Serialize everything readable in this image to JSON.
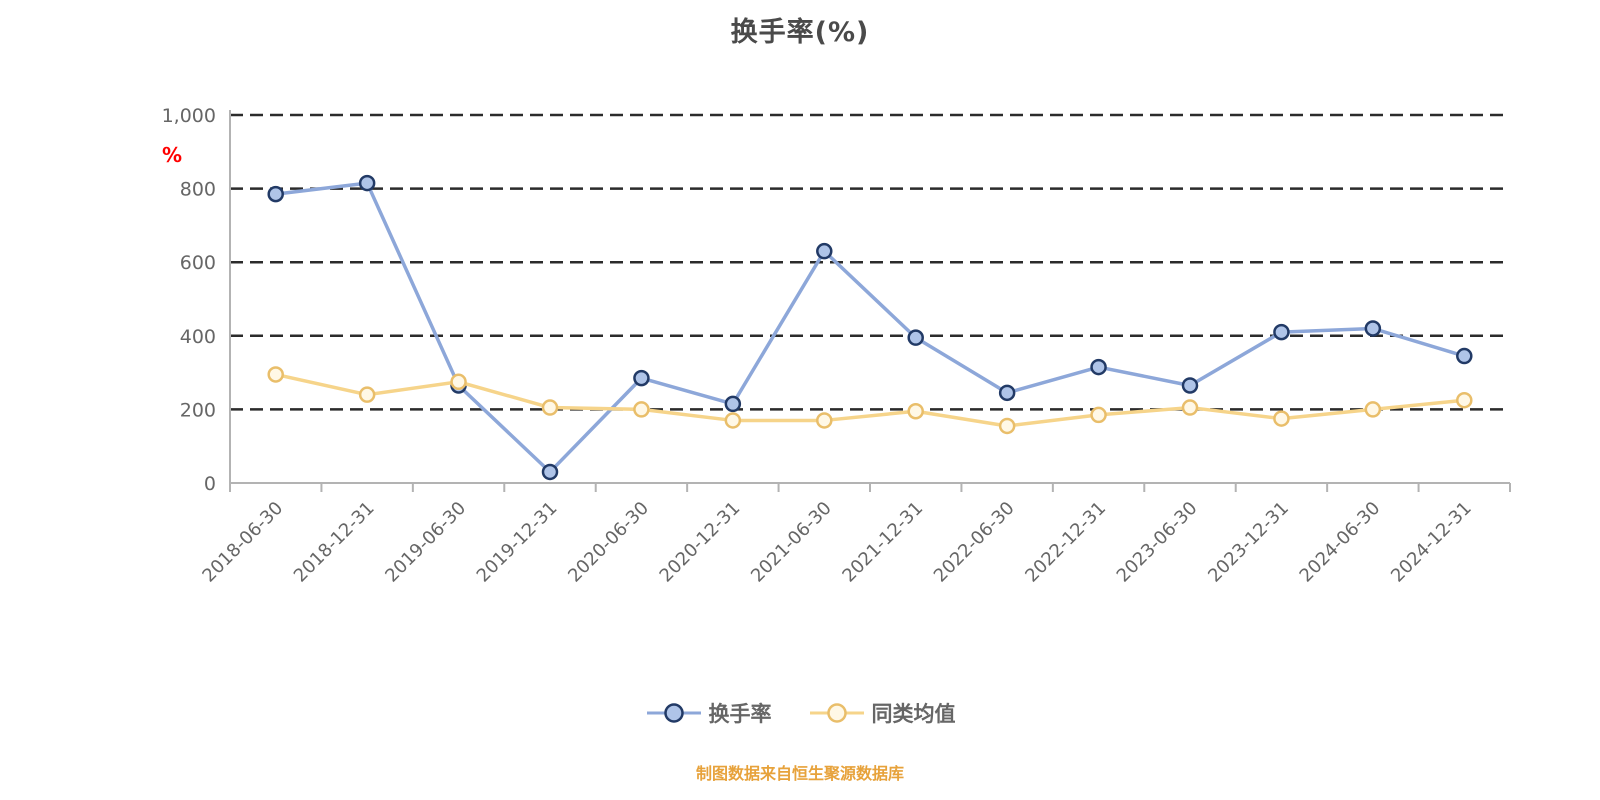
{
  "chart": {
    "title": "换手率(%)",
    "y_unit_label": "%",
    "y_unit_color": "#ff0000",
    "footer": "制图数据来自恒生聚源数据库",
    "footer_color": "#e7a23b",
    "grid_color": "#2b2b2b",
    "axis_color": "#b3b3b3",
    "tick_label_color": "#666666"
  },
  "chart_data": {
    "type": "line",
    "title": "换手率(%)",
    "xlabel": "",
    "ylabel": "%",
    "ylim": [
      0,
      1000
    ],
    "grid": "horizontal dashed",
    "legend_position": "bottom",
    "categories": [
      "2018-06-30",
      "2018-12-31",
      "2019-06-30",
      "2019-12-31",
      "2020-06-30",
      "2020-12-31",
      "2021-06-30",
      "2021-12-31",
      "2022-06-30",
      "2022-12-31",
      "2023-06-30",
      "2023-12-31",
      "2024-06-30",
      "2024-12-31"
    ],
    "yticks": [
      {
        "value": 0,
        "label": "0"
      },
      {
        "value": 200,
        "label": "200"
      },
      {
        "value": 400,
        "label": "400"
      },
      {
        "value": 600,
        "label": "600"
      },
      {
        "value": 800,
        "label": "800"
      },
      {
        "value": 1000,
        "label": "1,000"
      }
    ],
    "series": [
      {
        "name": "换手率",
        "values": [
          785,
          815,
          265,
          30,
          285,
          215,
          630,
          395,
          245,
          315,
          265,
          410,
          420,
          345
        ],
        "line_color": "#8da7d9",
        "marker_fill": "#afc4e8",
        "marker_stroke": "#223a66"
      },
      {
        "name": "同类均值",
        "values": [
          295,
          240,
          275,
          205,
          200,
          170,
          170,
          195,
          155,
          185,
          205,
          175,
          200,
          225
        ],
        "line_color": "#f6d48a",
        "marker_fill": "#fff8e6",
        "marker_stroke": "#e9be6a"
      }
    ]
  }
}
